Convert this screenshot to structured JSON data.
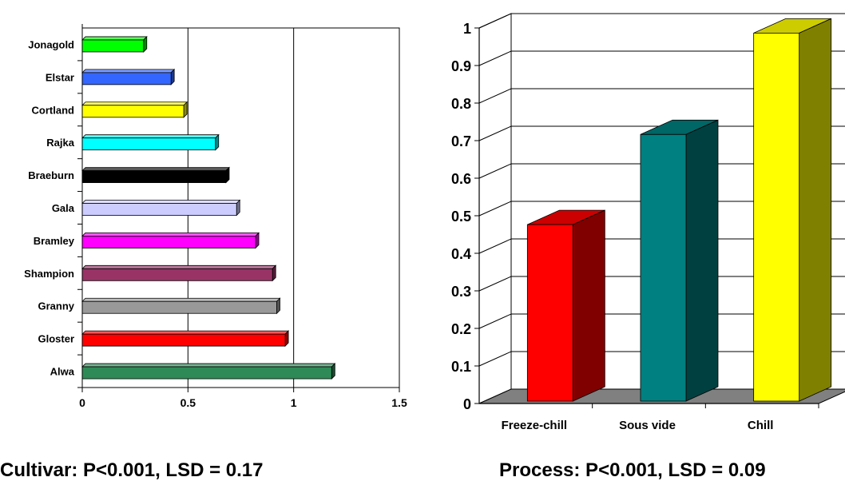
{
  "chart_data": [
    {
      "type": "bar",
      "orientation": "horizontal",
      "style": "3d",
      "categories": [
        "Alwa",
        "Gloster",
        "Granny",
        "Shampion",
        "Bramley",
        "Gala",
        "Braeburn",
        "Rajka",
        "Cortland",
        "Elstar",
        "Jonagold"
      ],
      "values": [
        1.18,
        0.96,
        0.92,
        0.9,
        0.82,
        0.73,
        0.68,
        0.63,
        0.48,
        0.42,
        0.29
      ],
      "colors": [
        "#2e8b57",
        "#ff0000",
        "#999999",
        "#993366",
        "#ff00ff",
        "#ccccff",
        "#000000",
        "#00ffff",
        "#ffff00",
        "#3366ff",
        "#00ff00"
      ],
      "xlim": [
        0,
        1.5
      ],
      "xticks": [
        "0",
        "0.5",
        "1",
        "1.5"
      ],
      "grid": "vertical",
      "caption": "Cultivar: P<0.001, LSD = 0.17"
    },
    {
      "type": "bar",
      "orientation": "vertical",
      "style": "3d",
      "categories": [
        "Freeze-chill",
        "Sous vide",
        "Chill"
      ],
      "values": [
        0.47,
        0.71,
        0.98
      ],
      "colors": [
        "#ff0000",
        "#008080",
        "#ffff00"
      ],
      "ylim": [
        0,
        1
      ],
      "yticks": [
        "0",
        "0.1",
        "0.2",
        "0.3",
        "0.4",
        "0.5",
        "0.6",
        "0.7",
        "0.8",
        "0.9",
        "1"
      ],
      "grid": "horizontal",
      "caption": "Process: P<0.001, LSD = 0.09"
    }
  ]
}
